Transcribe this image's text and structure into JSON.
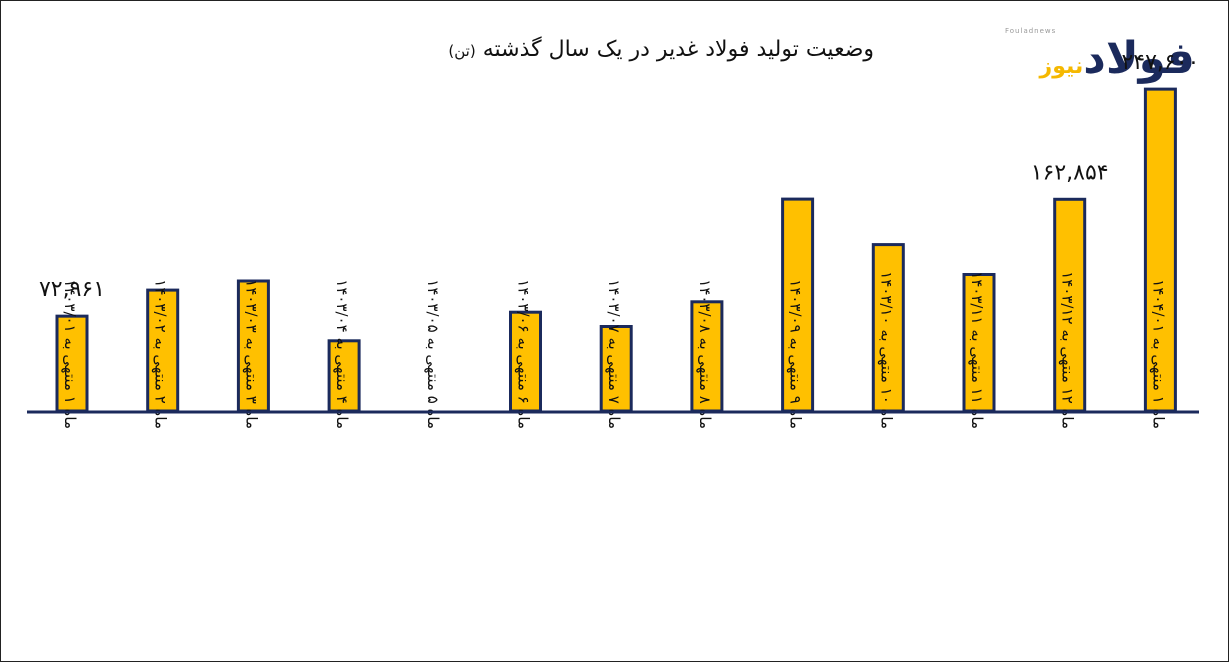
{
  "title": "وضعیت تولید فولاد غدیر در یک سال گذشته",
  "unit": "(تن)",
  "logo": {
    "small": "Fouladnews",
    "part1": "فولاد",
    "part2": "نیوز"
  },
  "colors": {
    "bar_fill": "#FFC000",
    "bar_stroke": "#1b2a5c",
    "axis": "#1b2a5c",
    "text": "#111111"
  },
  "chart_data": {
    "type": "bar",
    "title": "وضعیت تولید فولاد غدیر در یک سال گذشته (تن)",
    "xlabel": "",
    "ylabel": "",
    "ylim": [
      0,
      260000
    ],
    "grid": false,
    "categories": [
      "ماه ۱ منتهی به ۱۴۰۳/۰۱",
      "ماه ۲ منتهی به ۱۴۰۳/۰۲",
      "ماه ۳ منتهی به ۱۴۰۳/۰۳",
      "ماه ۴ منتهی به ۱۴۰۳/۰۴",
      "ماه ۵ منتهی به ۱۴۰۳/۰۵",
      "ماه ۶ منتهی به ۱۴۰۳/۰۶",
      "ماه ۷ منتهی به ۱۴۰۳/۰۷",
      "ماه ۸ منتهی به ۱۴۰۳/۰۸",
      "ماه ۹ منتهی به ۱۴۰۳/۰۹",
      "ماه ۱۰ منتهی به ۱۴۰۳/۱۰",
      "ماه ۱۱ منتهی به ۱۴۰۳/۱۱",
      "ماه ۱۲ منتهی به ۱۴۰۳/۱۲",
      "ماه ۱ منتهی به ۱۴۰۴/۰۱"
    ],
    "values": [
      72961,
      93000,
      100000,
      54000,
      0,
      76000,
      65000,
      84000,
      163000,
      128000,
      105000,
      162854,
      247600
    ],
    "data_labels": [
      "۷۲,۹۶۱",
      "",
      "",
      "",
      "",
      "",
      "",
      "",
      "",
      "",
      "",
      "۱۶۲,۸۵۴",
      "۲۴۷,۶۰۰"
    ]
  }
}
